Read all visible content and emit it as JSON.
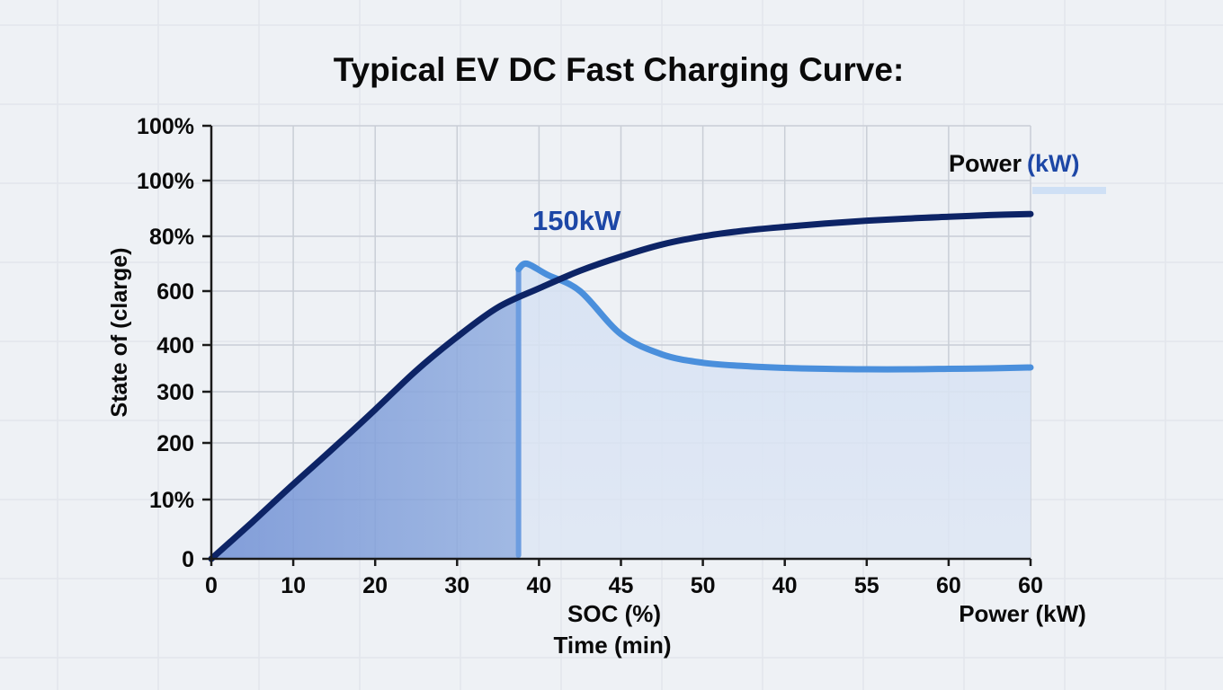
{
  "colors": {
    "background": "#eef1f5",
    "grid": "#c9ced6",
    "soc_line": "#0d2466",
    "power_line": "#4a8fdc",
    "fill_dark": "#93afe0",
    "fill_light": "#d5e1f3",
    "text": "#0a0a0a",
    "label_blue": "#1d47a6"
  },
  "chart_data": {
    "type": "line",
    "title": "Typical EV DC Fast Charging Curve:",
    "ylabel": "State of (clarge)",
    "xlabel": "SOC (%)",
    "xlabel2": "Time (min)",
    "x_right_label": "Power (kW)",
    "grid": true,
    "x_ticks": [
      "0",
      "10",
      "20",
      "30",
      "40",
      "45",
      "50",
      "40",
      "55",
      "60",
      "60"
    ],
    "y_ticks": [
      "0",
      "10%",
      "200",
      "300",
      "400",
      "600",
      "80%",
      "100%",
      "100%"
    ],
    "annotation": "150kW",
    "legend": {
      "prefix": "Power",
      "suffix": "(kW)",
      "placement": "top-right"
    },
    "series": [
      {
        "name": "Power (kW)",
        "role": "soc",
        "points": [
          [
            0,
            0
          ],
          [
            0.5,
            0.62
          ],
          [
            1,
            1.27
          ],
          [
            1.5,
            1.92
          ],
          [
            2,
            2.65
          ],
          [
            2.5,
            3.45
          ],
          [
            3,
            4.15
          ],
          [
            3.5,
            4.7
          ],
          [
            4,
            5.05
          ],
          [
            4.5,
            5.37
          ],
          [
            5,
            5.63
          ],
          [
            5.5,
            5.85
          ],
          [
            6,
            6.0
          ],
          [
            6.5,
            6.1
          ],
          [
            7,
            6.17
          ],
          [
            7.5,
            6.23
          ],
          [
            8,
            6.28
          ],
          [
            8.5,
            6.32
          ],
          [
            9,
            6.35
          ],
          [
            9.5,
            6.38
          ],
          [
            10,
            6.4
          ]
        ]
      },
      {
        "role": "power",
        "points": [
          [
            3.75,
            5.4
          ],
          [
            3.85,
            5.5
          ],
          [
            4.1,
            5.3
          ],
          [
            4.5,
            5.0
          ],
          [
            5.0,
            4.2
          ],
          [
            5.5,
            3.8
          ],
          [
            6.0,
            3.62
          ],
          [
            6.5,
            3.55
          ],
          [
            7.0,
            3.51
          ],
          [
            7.5,
            3.49
          ],
          [
            8.0,
            3.48
          ],
          [
            8.5,
            3.48
          ],
          [
            9.0,
            3.49
          ],
          [
            9.5,
            3.5
          ],
          [
            10.0,
            3.52
          ]
        ]
      }
    ],
    "charge_stop_x": 3.75
  }
}
